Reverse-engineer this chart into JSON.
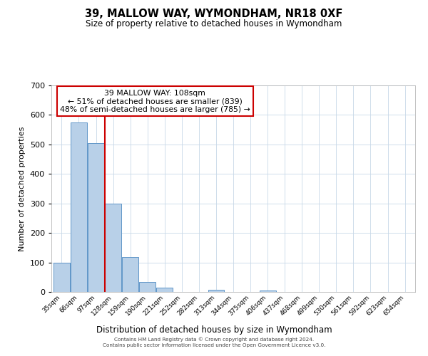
{
  "title": "39, MALLOW WAY, WYMONDHAM, NR18 0XF",
  "subtitle": "Size of property relative to detached houses in Wymondham",
  "xlabel": "Distribution of detached houses by size in Wymondham",
  "ylabel": "Number of detached properties",
  "bar_labels": [
    "35sqm",
    "66sqm",
    "97sqm",
    "128sqm",
    "159sqm",
    "190sqm",
    "221sqm",
    "252sqm",
    "282sqm",
    "313sqm",
    "344sqm",
    "375sqm",
    "406sqm",
    "437sqm",
    "468sqm",
    "499sqm",
    "530sqm",
    "561sqm",
    "592sqm",
    "623sqm",
    "654sqm"
  ],
  "bar_values": [
    100,
    575,
    505,
    300,
    118,
    35,
    14,
    0,
    0,
    7,
    0,
    0,
    5,
    0,
    0,
    0,
    0,
    0,
    0,
    0,
    0
  ],
  "bar_color": "#b8d0e8",
  "bar_edge_color": "#6096c8",
  "vline_x": 2.5,
  "vline_color": "#cc0000",
  "ylim": [
    0,
    700
  ],
  "yticks": [
    0,
    100,
    200,
    300,
    400,
    500,
    600,
    700
  ],
  "annotation_title": "39 MALLOW WAY: 108sqm",
  "annotation_line1": "← 51% of detached houses are smaller (839)",
  "annotation_line2": "48% of semi-detached houses are larger (785) →",
  "annotation_box_color": "#ffffff",
  "annotation_box_edge": "#cc0000",
  "footer_line1": "Contains HM Land Registry data © Crown copyright and database right 2024.",
  "footer_line2": "Contains public sector information licensed under the Open Government Licence v3.0.",
  "background_color": "#ffffff",
  "grid_color": "#c8d8e8"
}
